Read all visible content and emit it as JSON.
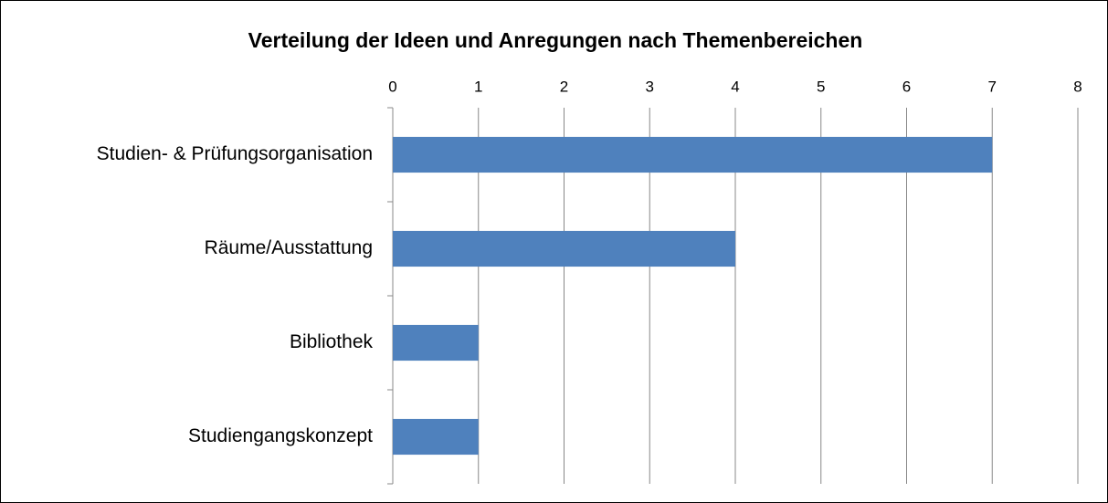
{
  "chart_data": {
    "type": "bar",
    "orientation": "horizontal",
    "title": "Verteilung der Ideen und Anregungen nach Themenbereichen",
    "categories": [
      "Studien- & Prüfungsorganisation",
      "Räume/Ausstattung",
      "Bibliothek",
      "Studiengangskonzept"
    ],
    "values": [
      7,
      4,
      1,
      1
    ],
    "color": "#4f81bd",
    "xlim": [
      0,
      8
    ],
    "xticks": [
      0,
      1,
      2,
      3,
      4,
      5,
      6,
      7,
      8
    ],
    "grid": true
  }
}
